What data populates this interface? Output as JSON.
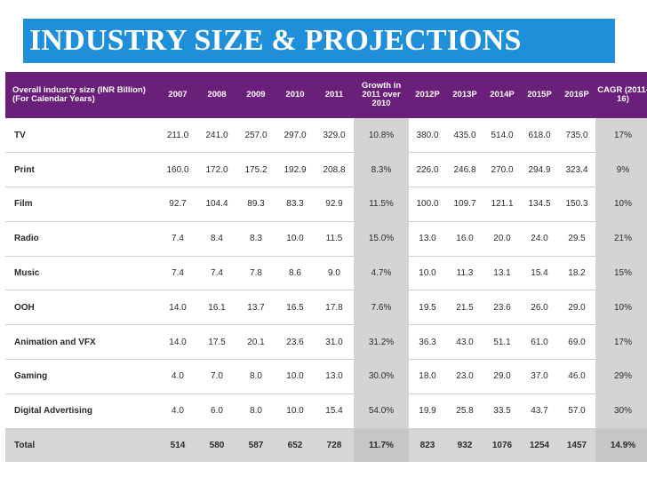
{
  "title": "INDUSTRY SIZE & PROJECTIONS",
  "table": {
    "header_label_line1": "Overall industry size (INR Billion)",
    "header_label_line2": "(For Calendar Years)",
    "columns": [
      "2007",
      "2008",
      "2009",
      "2010",
      "2011",
      "Growth in 2011 over 2010",
      "2012P",
      "2013P",
      "2014P",
      "2015P",
      "2016P",
      "CAGR (2011-16)"
    ],
    "rows": [
      {
        "label": "TV",
        "values": [
          "211.0",
          "241.0",
          "257.0",
          "297.0",
          "329.0",
          "10.8%",
          "380.0",
          "435.0",
          "514.0",
          "618.0",
          "735.0",
          "17%"
        ]
      },
      {
        "label": "Print",
        "values": [
          "160.0",
          "172.0",
          "175.2",
          "192.9",
          "208.8",
          "8.3%",
          "226.0",
          "246.8",
          "270.0",
          "294.9",
          "323.4",
          "9%"
        ]
      },
      {
        "label": "Film",
        "values": [
          "92.7",
          "104.4",
          "89.3",
          "83.3",
          "92.9",
          "11.5%",
          "100.0",
          "109.7",
          "121.1",
          "134.5",
          "150.3",
          "10%"
        ]
      },
      {
        "label": "Radio",
        "values": [
          "7.4",
          "8.4",
          "8.3",
          "10.0",
          "11.5",
          "15.0%",
          "13.0",
          "16.0",
          "20.0",
          "24.0",
          "29.5",
          "21%"
        ]
      },
      {
        "label": "Music",
        "values": [
          "7.4",
          "7.4",
          "7.8",
          "8.6",
          "9.0",
          "4.7%",
          "10.0",
          "11.3",
          "13.1",
          "15.4",
          "18.2",
          "15%"
        ]
      },
      {
        "label": "OOH",
        "values": [
          "14.0",
          "16.1",
          "13.7",
          "16.5",
          "17.8",
          "7.6%",
          "19.5",
          "21.5",
          "23.6",
          "26.0",
          "29.0",
          "10%"
        ]
      },
      {
        "label": "Animation and VFX",
        "values": [
          "14.0",
          "17.5",
          "20.1",
          "23.6",
          "31.0",
          "31.2%",
          "36.3",
          "43.0",
          "51.1",
          "61.0",
          "69.0",
          "17%"
        ]
      },
      {
        "label": "Gaming",
        "values": [
          "4.0",
          "7.0",
          "8.0",
          "10.0",
          "13.0",
          "30.0%",
          "18.0",
          "23.0",
          "29.0",
          "37.0",
          "46.0",
          "29%"
        ]
      },
      {
        "label": "Digital Advertising",
        "values": [
          "4.0",
          "6.0",
          "8.0",
          "10.0",
          "15.4",
          "54.0%",
          "19.9",
          "25.8",
          "33.5",
          "43.7",
          "57.0",
          "30%"
        ]
      }
    ],
    "total": {
      "label": "Total",
      "values": [
        "514",
        "580",
        "587",
        "652",
        "728",
        "11.7%",
        "823",
        "932",
        "1076",
        "1254",
        "1457",
        "14.9%"
      ]
    }
  },
  "colors": {
    "title_bg": "#1f8fd9",
    "header_bg": "#6a1f7a",
    "highlight_col": "#d4d4d4"
  }
}
